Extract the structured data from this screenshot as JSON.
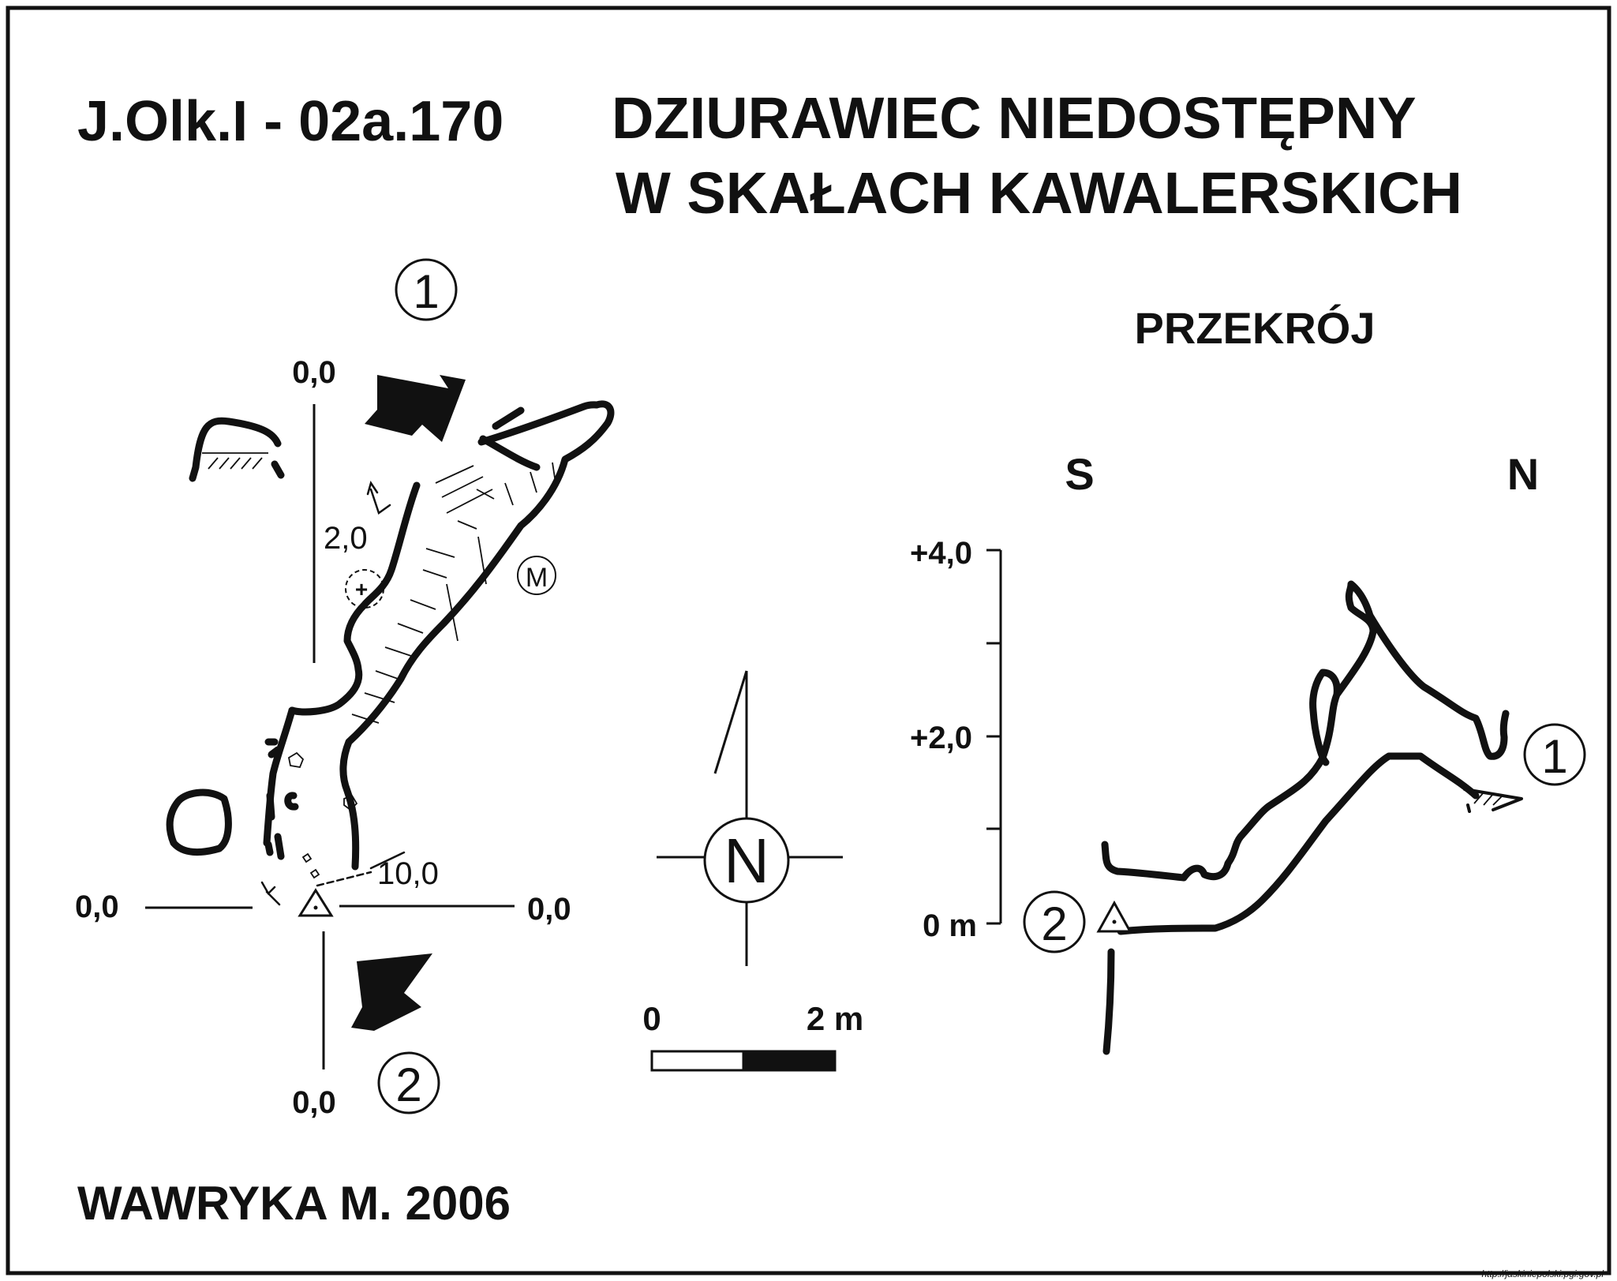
{
  "title": {
    "code": "J.Olk.I - 02a.170",
    "line1": "DZIURAWIEC NIEDOSTĘPNY",
    "line2": "W SKAŁACH KAWALERSKICH"
  },
  "plan": {
    "entrance_1_marker": "1",
    "entrance_2_marker": "2",
    "ref_top": "0,0",
    "ref_left": "0,0",
    "ref_right": "0,0",
    "ref_bottom": "0,0",
    "measure_a": "2,0",
    "measure_b": "10,0",
    "symbol_m": "M"
  },
  "north_arrow": {
    "label": "N"
  },
  "scale_bar": {
    "start_label": "0",
    "end_label": "2 m",
    "length_m": 2
  },
  "section": {
    "title": "PRZEKRÓJ",
    "dir_left": "S",
    "dir_right": "N",
    "ticks": [
      "+4,0",
      "+2,0",
      "0 m"
    ],
    "entrance_1_marker": "1",
    "entrance_2_marker": "2"
  },
  "author": "WAWRYKA M. 2006",
  "watermark": "http://jaskiniepolski.pgi.gov.pl",
  "colors": {
    "ink": "#111111",
    "paper": "#ffffff"
  }
}
